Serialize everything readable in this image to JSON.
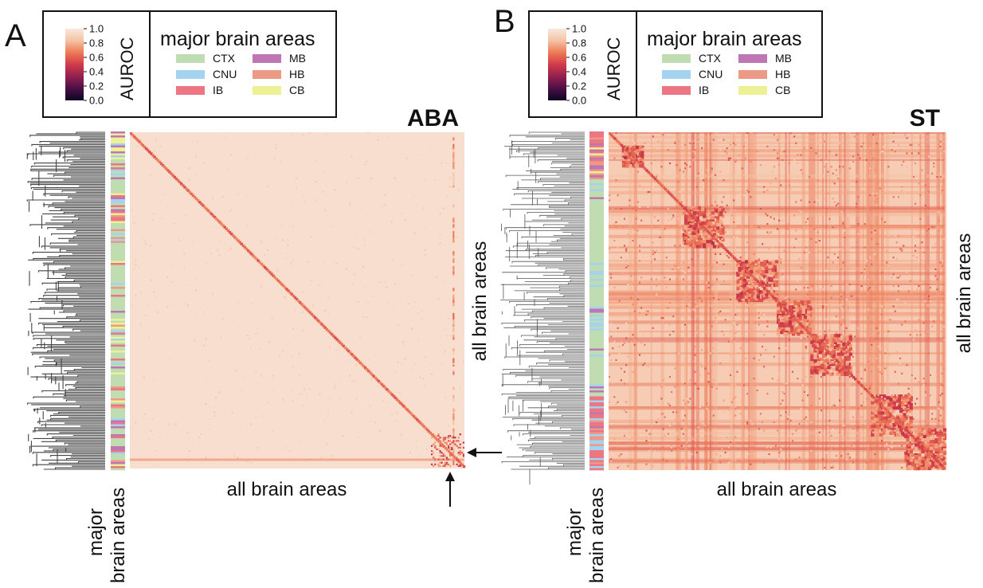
{
  "colorbar": {
    "label": "AUROC",
    "ticks": [
      "1.0",
      "0.8",
      "0.6",
      "0.4",
      "0.2",
      "0.0"
    ],
    "stops": [
      "#f9e7dc",
      "#f5c3a5",
      "#ee7a55",
      "#d13a4a",
      "#92204f",
      "#4b1046",
      "#0c0621"
    ]
  },
  "legend": {
    "title": "major brain areas",
    "items": [
      {
        "label": "CTX",
        "color": "#bfddb1"
      },
      {
        "label": "CNU",
        "color": "#a3d3f0"
      },
      {
        "label": "IB",
        "color": "#ec7682"
      },
      {
        "label": "MB",
        "color": "#be76b5"
      },
      {
        "label": "HB",
        "color": "#ec9a85"
      },
      {
        "label": "CB",
        "color": "#eef096"
      }
    ]
  },
  "chart_data": [
    {
      "type": "heatmap",
      "panel_letter": "A",
      "title": "ABA",
      "xlabel": "all brain areas",
      "ylabel": "all brain areas",
      "row_annotation_label": [
        "major",
        "brain areas"
      ],
      "value_range": [
        0,
        1
      ],
      "background_auroc": 0.96,
      "diagonal_auroc": 0.5,
      "structure": "mostly high AUROC (>0.9) off-diagonal; low AUROC on the diagonal; a low-AUROC band near the bottom rows and rightmost columns",
      "arrows": [
        "pointing left at bottom-right rows",
        "pointing up at bottom-right columns"
      ]
    },
    {
      "type": "heatmap",
      "panel_letter": "B",
      "title": "ST",
      "xlabel": "all brain areas",
      "ylabel": "all brain areas",
      "row_annotation_label": [
        "major",
        "brain areas"
      ],
      "value_range": [
        0,
        1
      ],
      "background_auroc": 0.85,
      "diagonal_auroc": 0.5,
      "structure": "widespread moderate AUROC with block-diagonal clusters of low AUROC and many low-AUROC rows and columns"
    }
  ]
}
